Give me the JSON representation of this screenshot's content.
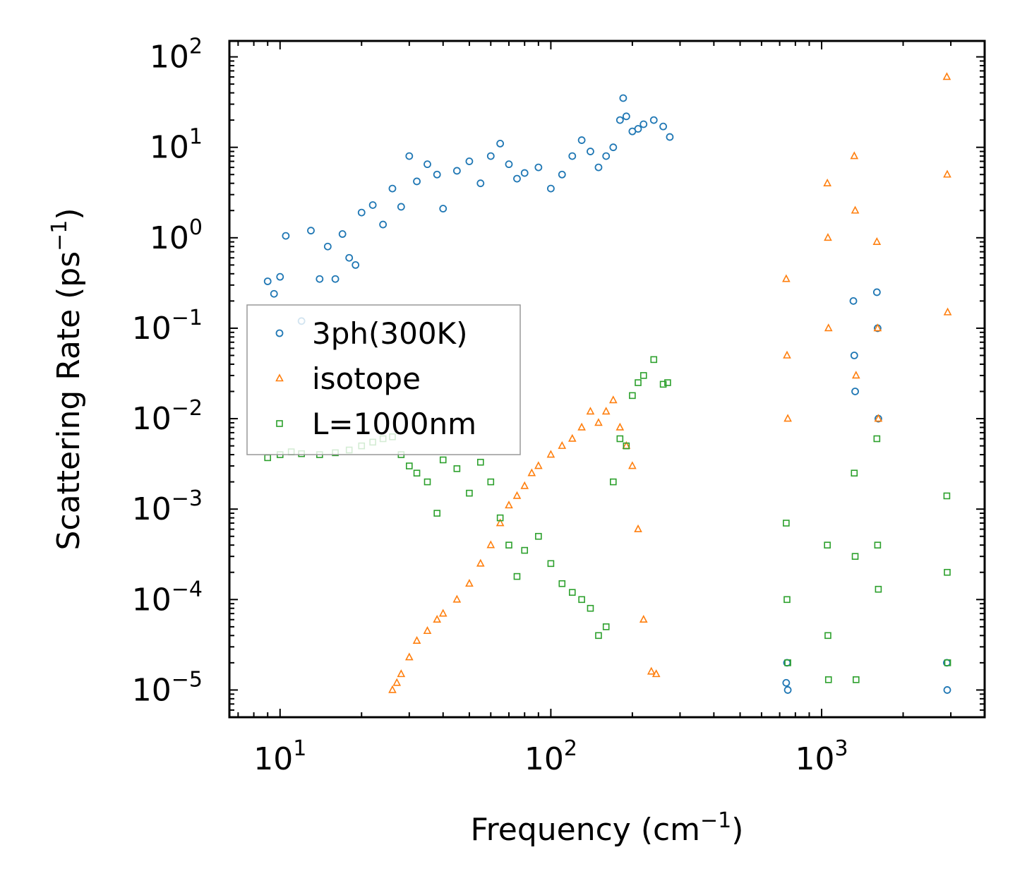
{
  "chart_data": {
    "type": "scatter",
    "title": "",
    "xlabel": "Frequency (cm",
    "xlabel_sup": "−1",
    "xlabel_end": ")",
    "ylabel": "Scattering Rate (ps",
    "ylabel_sup": "−1",
    "ylabel_end": ")",
    "xscale": "log",
    "yscale": "log",
    "xlim": [
      6.5,
      4000
    ],
    "ylim": [
      5e-06,
      150
    ],
    "x_ticks": [
      {
        "base": "10",
        "exp": "1",
        "value": 10
      },
      {
        "base": "10",
        "exp": "2",
        "value": 100
      },
      {
        "base": "10",
        "exp": "3",
        "value": 1000
      }
    ],
    "y_ticks": [
      {
        "base": "10",
        "exp": "2",
        "value": 100
      },
      {
        "base": "10",
        "exp": "1",
        "value": 10
      },
      {
        "base": "10",
        "exp": "0",
        "value": 1
      },
      {
        "base": "10",
        "exp": "−1",
        "value": 0.1
      },
      {
        "base": "10",
        "exp": "−2",
        "value": 0.01
      },
      {
        "base": "10",
        "exp": "−3",
        "value": 0.001
      },
      {
        "base": "10",
        "exp": "−4",
        "value": 0.0001
      },
      {
        "base": "10",
        "exp": "−5",
        "value": 1e-05
      }
    ],
    "legend_position": "center-left",
    "series": [
      {
        "name": "3ph(300K)",
        "marker": "circle",
        "color": "#1f77b4",
        "x": [
          9,
          9.5,
          10,
          10.5,
          12,
          13,
          14,
          15,
          16,
          17,
          18,
          19,
          20,
          22,
          24,
          26,
          28,
          30,
          32,
          35,
          38,
          40,
          45,
          50,
          55,
          60,
          65,
          70,
          75,
          80,
          90,
          100,
          110,
          120,
          130,
          140,
          150,
          160,
          170,
          180,
          185,
          190,
          200,
          210,
          220,
          240,
          260,
          275,
          740,
          745,
          750,
          1310,
          1320,
          1330,
          1600,
          1610,
          1620,
          2900,
          2910
        ],
        "y": [
          0.33,
          0.24,
          0.37,
          1.05,
          0.12,
          1.2,
          0.35,
          0.8,
          0.35,
          1.1,
          0.6,
          0.5,
          1.9,
          2.3,
          1.4,
          3.5,
          2.2,
          8.0,
          4.2,
          6.5,
          5.0,
          2.1,
          5.5,
          7.0,
          4.0,
          8.0,
          11.0,
          6.5,
          4.5,
          5.2,
          6.0,
          3.5,
          5.0,
          8.0,
          12.0,
          9.0,
          6.0,
          8.0,
          10.0,
          20.0,
          35.0,
          22.0,
          15.0,
          16.0,
          18.0,
          20.0,
          17.0,
          13.0,
          1.2e-05,
          2e-05,
          1e-05,
          0.2,
          0.05,
          0.02,
          0.25,
          0.1,
          0.01,
          2e-05,
          1e-05
        ]
      },
      {
        "name": "isotope",
        "marker": "triangle",
        "color": "#ff7f0e",
        "x": [
          26,
          27,
          28,
          30,
          32,
          35,
          38,
          40,
          45,
          50,
          55,
          60,
          65,
          70,
          75,
          80,
          85,
          90,
          100,
          110,
          120,
          130,
          140,
          150,
          160,
          170,
          180,
          190,
          200,
          210,
          220,
          235,
          245,
          740,
          745,
          750,
          1050,
          1055,
          1060,
          1320,
          1330,
          1340,
          1600,
          1610,
          1620,
          2900,
          2910,
          2920
        ],
        "y": [
          1e-05,
          1.2e-05,
          1.5e-05,
          2.3e-05,
          3.5e-05,
          4.5e-05,
          6e-05,
          7e-05,
          0.0001,
          0.00015,
          0.00025,
          0.0004,
          0.0007,
          0.0011,
          0.0014,
          0.0018,
          0.0025,
          0.003,
          0.004,
          0.005,
          0.006,
          0.008,
          0.012,
          0.009,
          0.012,
          0.016,
          0.008,
          0.005,
          0.003,
          0.0006,
          6e-05,
          1.6e-05,
          1.5e-05,
          0.35,
          0.05,
          0.01,
          4.0,
          1.0,
          0.1,
          8.0,
          2.0,
          0.03,
          0.9,
          0.1,
          0.01,
          60.0,
          5.0,
          0.15
        ]
      },
      {
        "name": "L=1000nm",
        "marker": "square",
        "color": "#2ca02c",
        "x": [
          9,
          10,
          11,
          12,
          14,
          16,
          18,
          20,
          22,
          24,
          26,
          28,
          30,
          32,
          35,
          38,
          40,
          45,
          50,
          55,
          60,
          65,
          70,
          75,
          80,
          90,
          100,
          110,
          120,
          130,
          140,
          150,
          160,
          170,
          180,
          190,
          200,
          210,
          220,
          240,
          260,
          270,
          740,
          745,
          750,
          1050,
          1055,
          1060,
          1320,
          1330,
          1340,
          1600,
          1610,
          1620,
          2900,
          2910,
          2920
        ],
        "y": [
          0.0037,
          0.004,
          0.0043,
          0.0041,
          0.004,
          0.0042,
          0.0045,
          0.005,
          0.0055,
          0.006,
          0.0063,
          0.004,
          0.003,
          0.0025,
          0.002,
          0.0009,
          0.0035,
          0.0028,
          0.0015,
          0.0033,
          0.002,
          0.0008,
          0.0004,
          0.00018,
          0.00035,
          0.0005,
          0.00025,
          0.00015,
          0.00012,
          0.0001,
          8e-05,
          4e-05,
          5e-05,
          0.002,
          0.006,
          0.005,
          0.018,
          0.025,
          0.03,
          0.045,
          0.024,
          0.025,
          0.0007,
          0.0001,
          2e-05,
          0.0004,
          4e-05,
          1.3e-05,
          0.0025,
          0.0003,
          1.3e-05,
          0.006,
          0.0004,
          0.00013,
          0.0014,
          0.0002,
          2e-05
        ]
      }
    ]
  }
}
